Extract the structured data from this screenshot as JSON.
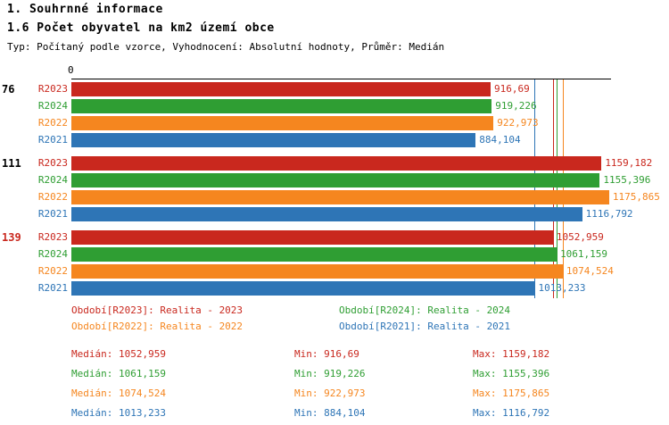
{
  "header": {
    "title1": "1. Souhrnné informace",
    "title2": "1.6 Počet obyvatel na km2 území obce",
    "subtitle": "Typ: Počítaný podle vzorce, Vyhodnocení: Absolutní hodnoty, Průměr: Medián"
  },
  "chart_data": {
    "type": "bar",
    "orientation": "horizontal",
    "origin_label": "0",
    "axis_max": 1180,
    "grid": false,
    "colors": {
      "R2023": "#c9281e",
      "R2024": "#2f9e33",
      "R2022": "#f5861f",
      "R2021": "#2e75b6"
    },
    "series_order": [
      "R2023",
      "R2024",
      "R2022",
      "R2021"
    ],
    "groups": [
      {
        "label": "76",
        "label_color": "#000000",
        "bars": [
          {
            "series": "R2023",
            "value": 916.69,
            "value_label": "916,69"
          },
          {
            "series": "R2024",
            "value": 919.226,
            "value_label": "919,226"
          },
          {
            "series": "R2022",
            "value": 922.973,
            "value_label": "922,973"
          },
          {
            "series": "R2021",
            "value": 884.104,
            "value_label": "884,104"
          }
        ]
      },
      {
        "label": "111",
        "label_color": "#000000",
        "bars": [
          {
            "series": "R2023",
            "value": 1159.182,
            "value_label": "1159,182"
          },
          {
            "series": "R2024",
            "value": 1155.396,
            "value_label": "1155,396"
          },
          {
            "series": "R2022",
            "value": 1175.865,
            "value_label": "1175,865"
          },
          {
            "series": "R2021",
            "value": 1116.792,
            "value_label": "1116,792"
          }
        ]
      },
      {
        "label": "139",
        "label_color": "#c9281e",
        "bars": [
          {
            "series": "R2023",
            "value": 1052.959,
            "value_label": "1052,959"
          },
          {
            "series": "R2024",
            "value": 1061.159,
            "value_label": "1061,159"
          },
          {
            "series": "R2022",
            "value": 1074.524,
            "value_label": "1074,524"
          },
          {
            "series": "R2021",
            "value": 1013.233,
            "value_label": "1013,233"
          }
        ]
      }
    ],
    "median_lines": [
      {
        "series": "R2023",
        "value": 1052.959
      },
      {
        "series": "R2024",
        "value": 1061.159
      },
      {
        "series": "R2022",
        "value": 1074.524
      },
      {
        "series": "R2021",
        "value": 1013.233
      }
    ]
  },
  "legend": {
    "left": [
      {
        "series": "R2023",
        "text": "Období[R2023]: Realita - 2023"
      },
      {
        "series": "R2022",
        "text": "Období[R2022]: Realita - 2022"
      }
    ],
    "right": [
      {
        "series": "R2024",
        "text": "Období[R2024]: Realita - 2024"
      },
      {
        "series": "R2021",
        "text": "Období[R2021]: Realita - 2021"
      }
    ]
  },
  "stats": [
    {
      "series": "R2023",
      "median": "Medián: 1052,959",
      "min": "Min: 916,69",
      "max": "Max: 1159,182"
    },
    {
      "series": "R2024",
      "median": "Medián: 1061,159",
      "min": "Min: 919,226",
      "max": "Max: 1155,396"
    },
    {
      "series": "R2022",
      "median": "Medián: 1074,524",
      "min": "Min: 922,973",
      "max": "Max: 1175,865"
    },
    {
      "series": "R2021",
      "median": "Medián: 1013,233",
      "min": "Min: 884,104",
      "max": "Max: 1116,792"
    }
  ]
}
